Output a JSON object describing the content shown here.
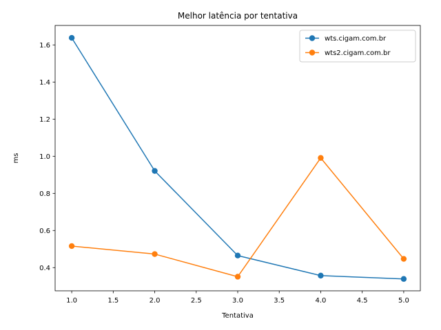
{
  "chart_data": {
    "type": "line",
    "title": "Melhor latência por tentativa",
    "xlabel": "Tentativa",
    "ylabel": "ms",
    "xlim": [
      0.8,
      5.2
    ],
    "ylim": [
      0.275,
      1.705
    ],
    "xticks": [
      1.0,
      1.5,
      2.0,
      2.5,
      3.0,
      3.5,
      4.0,
      4.5,
      5.0
    ],
    "xtick_labels": [
      "1.0",
      "1.5",
      "2.0",
      "2.5",
      "3.0",
      "3.5",
      "4.0",
      "4.5",
      "5.0"
    ],
    "yticks": [
      0.4,
      0.6,
      0.8,
      1.0,
      1.2,
      1.4,
      1.6
    ],
    "ytick_labels": [
      "0.4",
      "0.6",
      "0.8",
      "1.0",
      "1.2",
      "1.4",
      "1.6"
    ],
    "grid": false,
    "legend_position": "top-right",
    "series": [
      {
        "name": "wts.cigam.com.br",
        "color": "#1f77b4",
        "marker": "circle",
        "x": [
          1,
          2,
          3,
          4,
          5
        ],
        "values": [
          1.638,
          0.921,
          0.465,
          0.357,
          0.339
        ]
      },
      {
        "name": "wts2.cigam.com.br",
        "color": "#ff7f0e",
        "marker": "circle",
        "x": [
          1,
          2,
          3,
          4,
          5
        ],
        "values": [
          0.516,
          0.473,
          0.351,
          0.991,
          0.447
        ]
      }
    ]
  }
}
